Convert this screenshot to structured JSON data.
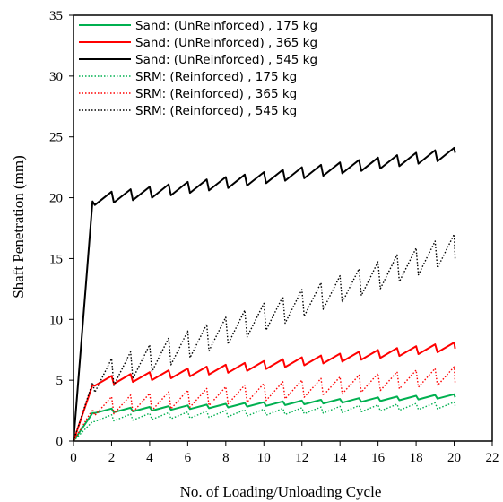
{
  "chart_data": {
    "type": "line",
    "title": "",
    "xlabel": "No. of Loading/Unloading Cycle",
    "ylabel": "Shaft Penetration (mm)",
    "xlim": [
      0,
      22
    ],
    "ylim": [
      0,
      35
    ],
    "xticks": [
      0,
      2,
      4,
      6,
      8,
      10,
      12,
      14,
      16,
      18,
      20,
      22
    ],
    "yticks": [
      0,
      5,
      10,
      15,
      20,
      25,
      30,
      35
    ],
    "grid": false,
    "legend_position": "top-left",
    "series": [
      {
        "name": "Sand: (UnReinforced) , 175 kg",
        "color": "#00b050",
        "style": "solid",
        "initial": 2.3,
        "peak_start": 2.6,
        "peak_end": 3.85,
        "amplitude": 0.3,
        "final": 3.6
      },
      {
        "name": "Sand: (UnReinforced) , 365 kg",
        "color": "#ff0000",
        "style": "solid",
        "initial": 4.6,
        "peak_start": 5.2,
        "peak_end": 8.1,
        "amplitude": 0.65,
        "final": 7.6
      },
      {
        "name": "Sand: (UnReinforced) , 545 kg",
        "color": "#000000",
        "style": "solid",
        "initial": 19.7,
        "peak_start": 20.3,
        "peak_end": 24.1,
        "amplitude": 0.9,
        "final": 23.7
      },
      {
        "name": "SRM: (Reinforced) , 175 kg",
        "color": "#00b050",
        "style": "dotted",
        "initial": 1.6,
        "peak_start": 2.1,
        "peak_end": 3.2,
        "amplitude": 0.5,
        "final": 2.9
      },
      {
        "name": "SRM: (Reinforced) , 365 kg",
        "color": "#ff0000",
        "style": "dotted",
        "initial": 2.6,
        "peak_start": 3.5,
        "peak_end": 6.1,
        "amplitude": 1.4,
        "final": 4.8
      },
      {
        "name": "SRM: (Reinforced) , 545 kg",
        "color": "#000000",
        "style": "dotted",
        "initial": 4.8,
        "peak_start": 6.2,
        "peak_end": 17.0,
        "amplitude": 2.2,
        "final": 15.0
      }
    ]
  }
}
